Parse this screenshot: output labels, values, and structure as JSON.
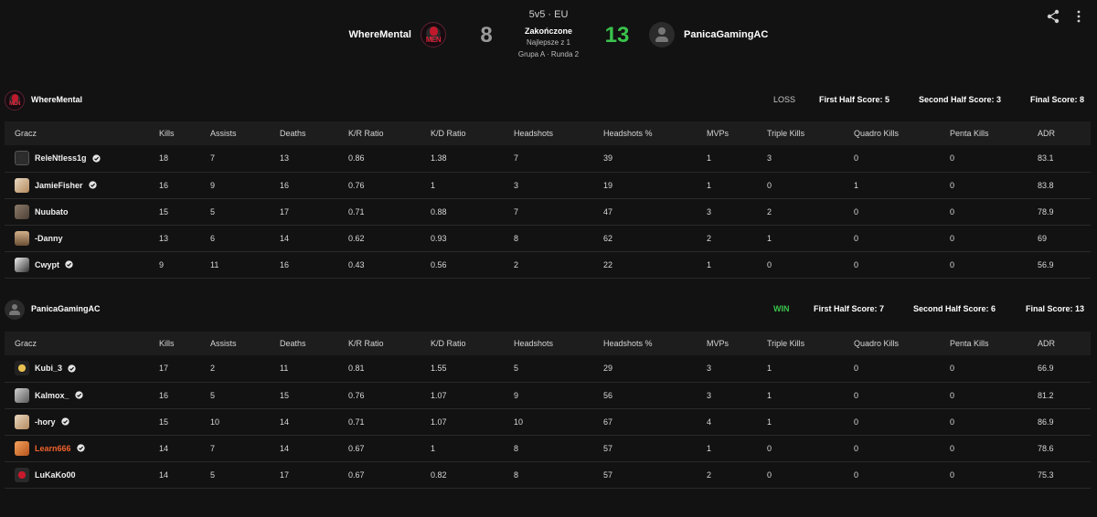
{
  "match": {
    "mode": "5v5 · EU",
    "status": "Zakończone",
    "best_of": "Najlepsze z 1",
    "group": "Grupa A · Runda 2",
    "team_a": {
      "name": "WhereMental",
      "score": "8",
      "logo_text": "MEN"
    },
    "team_b": {
      "name": "PanicaGamingAC",
      "score": "13"
    }
  },
  "columns": [
    "Gracz",
    "Kills",
    "Assists",
    "Deaths",
    "K/R Ratio",
    "K/D Ratio",
    "Headshots",
    "Headshots %",
    "MVPs",
    "Triple Kills",
    "Quadro Kills",
    "Penta Kills",
    "ADR"
  ],
  "teams": [
    {
      "name": "WhereMental",
      "result": "LOSS",
      "first_half": "First Half Score: 5",
      "second_half": "Second Half Score: 3",
      "final": "Final Score: 8",
      "players": [
        {
          "name": "ReleNtless1g",
          "verified": true,
          "avatar": "dark",
          "stats": [
            "18",
            "7",
            "13",
            "0.86",
            "1.38",
            "7",
            "39",
            "1",
            "3",
            "0",
            "0",
            "83.1"
          ]
        },
        {
          "name": "JamieFisher",
          "verified": true,
          "avatar": "light",
          "stats": [
            "16",
            "9",
            "16",
            "0.76",
            "1",
            "3",
            "19",
            "1",
            "0",
            "1",
            "0",
            "83.8"
          ]
        },
        {
          "name": "Nuubato",
          "verified": false,
          "avatar": "brown",
          "stats": [
            "15",
            "5",
            "17",
            "0.71",
            "0.88",
            "7",
            "47",
            "3",
            "2",
            "0",
            "0",
            "78.9"
          ]
        },
        {
          "name": "-Danny",
          "verified": false,
          "avatar": "face",
          "stats": [
            "13",
            "6",
            "14",
            "0.62",
            "0.93",
            "8",
            "62",
            "2",
            "1",
            "0",
            "0",
            "69"
          ]
        },
        {
          "name": "Cwypt",
          "verified": true,
          "avatar": "bw",
          "stats": [
            "9",
            "11",
            "16",
            "0.43",
            "0.56",
            "2",
            "22",
            "1",
            "0",
            "0",
            "0",
            "56.9"
          ]
        }
      ]
    },
    {
      "name": "PanicaGamingAC",
      "result": "WIN",
      "first_half": "First Half Score: 7",
      "second_half": "Second Half Score: 6",
      "final": "Final Score: 13",
      "players": [
        {
          "name": "Kubi_3",
          "verified": true,
          "avatar": "gold",
          "stats": [
            "17",
            "2",
            "11",
            "0.81",
            "1.55",
            "5",
            "29",
            "3",
            "1",
            "0",
            "0",
            "66.9"
          ]
        },
        {
          "name": "Kalmox_",
          "verified": true,
          "avatar": "gray",
          "stats": [
            "16",
            "5",
            "15",
            "0.76",
            "1.07",
            "9",
            "56",
            "3",
            "1",
            "0",
            "0",
            "81.2"
          ]
        },
        {
          "name": "-hory",
          "verified": true,
          "avatar": "light",
          "stats": [
            "15",
            "10",
            "14",
            "0.71",
            "1.07",
            "10",
            "67",
            "4",
            "1",
            "0",
            "0",
            "86.9"
          ]
        },
        {
          "name": "Learn666",
          "verified": true,
          "avatar": "orange",
          "name_color": "#f0612d",
          "stats": [
            "14",
            "7",
            "14",
            "0.67",
            "1",
            "8",
            "57",
            "1",
            "0",
            "0",
            "0",
            "78.6"
          ]
        },
        {
          "name": "LuKaKo00",
          "verified": false,
          "avatar": "red",
          "stats": [
            "14",
            "5",
            "17",
            "0.67",
            "0.82",
            "8",
            "57",
            "2",
            "0",
            "0",
            "0",
            "75.3"
          ]
        }
      ]
    }
  ],
  "colors": {
    "win": "#3ac34c",
    "accent_orange": "#f0612d",
    "background": "#121212"
  }
}
